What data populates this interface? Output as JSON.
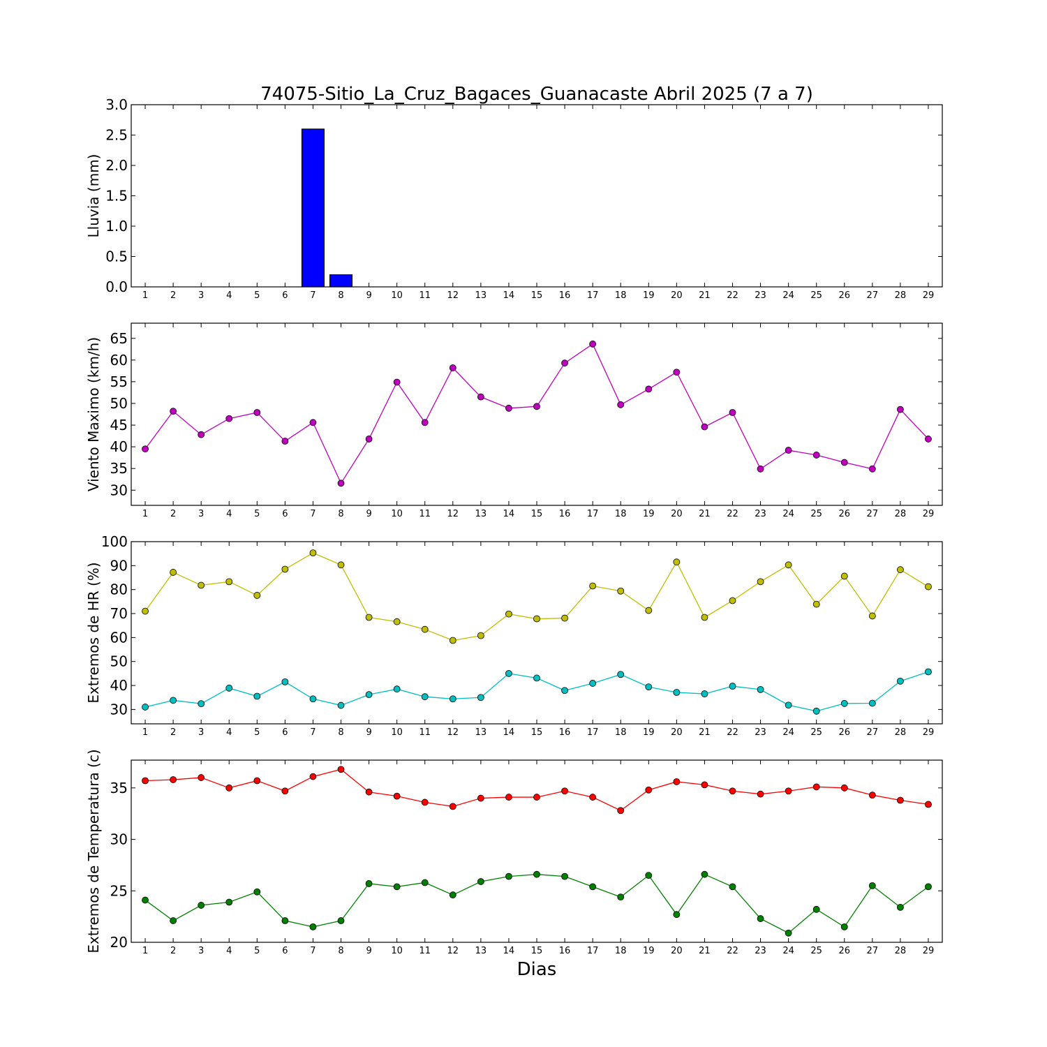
{
  "chart_data": {
    "title": "74075-Sitio_La_Cruz_Bagaces_Guanacaste Abril 2025  (7 a 7)",
    "xlabel": "Dias",
    "days": [
      1,
      2,
      3,
      4,
      5,
      6,
      7,
      8,
      9,
      10,
      11,
      12,
      13,
      14,
      15,
      16,
      17,
      18,
      19,
      20,
      21,
      22,
      23,
      24,
      25,
      26,
      27,
      28,
      29
    ],
    "panels": [
      {
        "type": "bar",
        "ylabel": "Lluvia (mm)",
        "ylim": [
          0,
          3
        ],
        "yticks": [
          0,
          0.5,
          1,
          1.5,
          2,
          2.5,
          3
        ],
        "ytick_labels": [
          "0.0",
          "0.5",
          "1.0",
          "1.5",
          "2.0",
          "2.5",
          "3.0"
        ],
        "series": [
          {
            "color": "#0000ff",
            "values": [
              0,
              0,
              0,
              0,
              0,
              0,
              2.6,
              0.2,
              0,
              0,
              0,
              0,
              0,
              0,
              0,
              0,
              0,
              0,
              0,
              0,
              0,
              0,
              0,
              0,
              0,
              0,
              0,
              0,
              0
            ]
          }
        ]
      },
      {
        "type": "line",
        "ylabel": "Viento Maximo (km/h)",
        "ylim": [
          26.5,
          68.5
        ],
        "yticks": [
          30,
          35,
          40,
          45,
          50,
          55,
          60,
          65
        ],
        "ytick_labels": [
          "30",
          "35",
          "40",
          "45",
          "50",
          "55",
          "60",
          "65"
        ],
        "series": [
          {
            "color": "#bf00bf",
            "values": [
              39.5,
              48.2,
              42.8,
              46.5,
              47.9,
              41.3,
              45.6,
              31.6,
              41.8,
              54.9,
              45.6,
              58.2,
              51.5,
              48.9,
              49.3,
              59.3,
              63.7,
              49.7,
              53.3,
              57.2,
              44.6,
              47.9,
              34.9,
              39.2,
              38.1,
              36.4,
              34.9,
              48.6,
              41.8
            ]
          }
        ]
      },
      {
        "type": "line",
        "ylabel": "Extremos de HR (%)",
        "ylim": [
          24,
          100
        ],
        "yticks": [
          30,
          40,
          50,
          60,
          70,
          80,
          90,
          100
        ],
        "ytick_labels": [
          "30",
          "40",
          "50",
          "60",
          "70",
          "80",
          "90",
          "100"
        ],
        "series": [
          {
            "color": "#bfbf00",
            "values": [
              71,
              87.2,
              81.8,
              83.3,
              77.6,
              88.5,
              95.3,
              90.3,
              68.4,
              66.6,
              63.4,
              58.8,
              60.8,
              69.8,
              67.8,
              68.1,
              81.5,
              79.4,
              71.3,
              91.5,
              68.4,
              75.4,
              83.3,
              90.3,
              73.9,
              85.6,
              69,
              88.3,
              81.2
            ]
          },
          {
            "color": "#00bfbf",
            "values": [
              31,
              33.8,
              32.4,
              38.9,
              35.5,
              41.5,
              34.4,
              31.7,
              36.2,
              38.5,
              35.3,
              34.4,
              35,
              45,
              43.1,
              37.9,
              40.9,
              44.6,
              39.4,
              37.1,
              36.5,
              39.7,
              38.3,
              31.8,
              29.3,
              32.5,
              32.6,
              41.8,
              45.7
            ]
          }
        ]
      },
      {
        "type": "line",
        "ylabel": "Extremos de Temperatura (c)",
        "ylim": [
          20,
          37.7
        ],
        "yticks": [
          20,
          25,
          30,
          35
        ],
        "ytick_labels": [
          "20",
          "25",
          "30",
          "35"
        ],
        "series": [
          {
            "color": "#ff0000",
            "values": [
              35.7,
              35.8,
              36,
              35,
              35.7,
              34.7,
              36.1,
              36.8,
              34.6,
              34.2,
              33.6,
              33.2,
              34,
              34.1,
              34.1,
              34.7,
              34.1,
              32.8,
              34.8,
              35.6,
              35.3,
              34.7,
              34.4,
              34.7,
              35.1,
              35,
              34.3,
              33.8,
              33.4
            ]
          },
          {
            "color": "#008000",
            "values": [
              24.1,
              22.1,
              23.6,
              23.9,
              24.9,
              22.1,
              21.5,
              22.1,
              25.7,
              25.4,
              25.8,
              24.6,
              25.9,
              26.4,
              26.6,
              26.4,
              25.4,
              24.4,
              26.5,
              22.7,
              26.6,
              25.4,
              22.3,
              20.9,
              23.2,
              21.5,
              25.5,
              23.4,
              25.4
            ]
          }
        ]
      }
    ]
  }
}
